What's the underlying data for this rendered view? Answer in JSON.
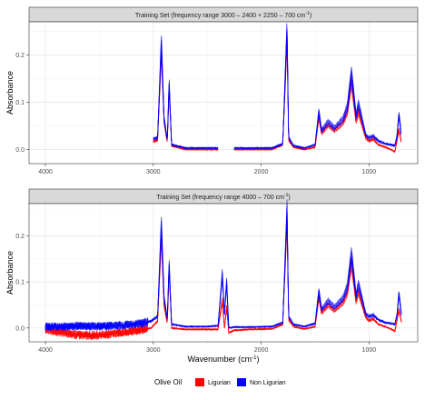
{
  "xlabel": "Wavenumber (cm",
  "xlabel_sup": "-1",
  "xlabel_end": ")",
  "legend": {
    "title": "Olive Oil",
    "items": [
      {
        "label": "Ligurian",
        "color": "#ff0000"
      },
      {
        "label": "Non Ligurian",
        "color": "#0000ff"
      }
    ]
  },
  "chart_data": [
    {
      "type": "line",
      "title": "Training Set (frequency range 3000 – 2400 + 2250 – 700 cm",
      "title_sup": "-1",
      "title_end": ")",
      "ylabel": "Absorbance",
      "xlim": [
        4000,
        700
      ],
      "xticks": [
        4000,
        3000,
        2000,
        1000
      ],
      "ylim": [
        -0.03,
        0.27
      ],
      "yticks": [
        0.0,
        0.1,
        0.2
      ],
      "ytick_labels": [
        "0.0",
        "0.1",
        "0.2"
      ],
      "grid": true,
      "segments": [
        [
          3000,
          2400
        ],
        [
          2250,
          700
        ]
      ],
      "series": [
        {
          "name": "Ligurian",
          "color": "#ff0000",
          "x": [
            3020,
            2960,
            2925,
            2900,
            2870,
            2853,
            2830,
            2700,
            2400,
            2250,
            1900,
            1800,
            1760,
            1745,
            1700,
            1600,
            1500,
            1465,
            1440,
            1378,
            1320,
            1238,
            1200,
            1163,
            1120,
            1098,
            1030,
            1000,
            960,
            914,
            850,
            800,
            760,
            740,
            723,
            700
          ],
          "y": [
            0.015,
            0.02,
            0.215,
            0.06,
            0.015,
            0.135,
            0.008,
            0.0,
            0.0,
            0.0,
            0.0,
            0.01,
            0.24,
            0.02,
            0.005,
            0.0,
            0.005,
            0.07,
            0.035,
            0.052,
            0.04,
            0.058,
            0.08,
            0.145,
            0.06,
            0.08,
            0.025,
            0.018,
            0.022,
            0.01,
            0.005,
            0.0,
            -0.005,
            0.02,
            0.042,
            0.015
          ]
        },
        {
          "name": "Non Ligurian",
          "color": "#0000ff",
          "x": [
            3020,
            2960,
            2925,
            2900,
            2870,
            2853,
            2830,
            2700,
            2400,
            2250,
            1900,
            1800,
            1760,
            1745,
            1700,
            1600,
            1500,
            1465,
            1440,
            1378,
            1320,
            1238,
            1200,
            1163,
            1120,
            1098,
            1030,
            1000,
            960,
            914,
            850,
            800,
            760,
            740,
            723,
            700
          ],
          "y": [
            0.02,
            0.025,
            0.225,
            0.065,
            0.02,
            0.14,
            0.01,
            0.003,
            0.003,
            0.003,
            0.003,
            0.012,
            0.255,
            0.025,
            0.008,
            0.003,
            0.01,
            0.08,
            0.04,
            0.058,
            0.045,
            0.065,
            0.09,
            0.16,
            0.07,
            0.095,
            0.03,
            0.025,
            0.028,
            0.018,
            0.012,
            0.01,
            0.008,
            0.03,
            0.075,
            0.03
          ]
        }
      ]
    },
    {
      "type": "line",
      "title": "Training Set (frequency range 4000 – 700 cm",
      "title_sup": "-1",
      "title_end": ")",
      "ylabel": "Absorbance",
      "xlim": [
        4000,
        700
      ],
      "xticks": [
        4000,
        3000,
        2000,
        1000
      ],
      "ylim": [
        -0.03,
        0.27
      ],
      "yticks": [
        0.0,
        0.1,
        0.2
      ],
      "ytick_labels": [
        "0.0",
        "0.1",
        "0.2"
      ],
      "grid": true,
      "segments": [
        [
          4000,
          700
        ]
      ],
      "series": [
        {
          "name": "Ligurian",
          "color": "#ff0000",
          "x": [
            4000,
            3900,
            3800,
            3700,
            3600,
            3500,
            3400,
            3300,
            3200,
            3100,
            3020,
            2960,
            2925,
            2900,
            2870,
            2853,
            2830,
            2700,
            2500,
            2400,
            2360,
            2340,
            2320,
            2300,
            2250,
            2100,
            1900,
            1800,
            1760,
            1745,
            1700,
            1600,
            1500,
            1465,
            1440,
            1378,
            1320,
            1238,
            1200,
            1163,
            1120,
            1098,
            1030,
            1000,
            960,
            914,
            850,
            800,
            760,
            740,
            723,
            700
          ],
          "y": [
            -0.003,
            -0.008,
            -0.012,
            -0.015,
            -0.016,
            -0.015,
            -0.013,
            -0.01,
            -0.007,
            -0.004,
            0.0,
            0.015,
            0.205,
            0.05,
            0.01,
            0.13,
            0.0,
            -0.003,
            -0.003,
            -0.003,
            0.06,
            0.0,
            0.045,
            -0.01,
            -0.005,
            -0.003,
            -0.002,
            0.008,
            0.24,
            0.018,
            0.003,
            -0.002,
            0.003,
            0.068,
            0.033,
            0.05,
            0.038,
            0.056,
            0.078,
            0.142,
            0.058,
            0.078,
            0.023,
            0.016,
            0.02,
            0.008,
            0.003,
            -0.002,
            -0.007,
            0.018,
            0.04,
            0.013
          ]
        },
        {
          "name": "Non Ligurian",
          "color": "#0000ff",
          "x": [
            4000,
            3900,
            3800,
            3700,
            3600,
            3500,
            3400,
            3300,
            3200,
            3100,
            3020,
            2960,
            2925,
            2900,
            2870,
            2853,
            2830,
            2700,
            2500,
            2400,
            2360,
            2340,
            2320,
            2300,
            2250,
            2100,
            1900,
            1800,
            1760,
            1745,
            1700,
            1600,
            1500,
            1465,
            1440,
            1378,
            1320,
            1238,
            1200,
            1163,
            1120,
            1098,
            1030,
            1000,
            960,
            914,
            850,
            800,
            760,
            740,
            723,
            700
          ],
          "y": [
            0.003,
            0.003,
            0.003,
            0.004,
            0.004,
            0.004,
            0.005,
            0.006,
            0.007,
            0.01,
            0.015,
            0.025,
            0.225,
            0.065,
            0.02,
            0.14,
            0.008,
            0.003,
            0.003,
            0.005,
            0.115,
            0.03,
            0.1,
            0.0,
            0.002,
            0.002,
            0.003,
            0.012,
            0.255,
            0.025,
            0.008,
            0.003,
            0.01,
            0.08,
            0.04,
            0.058,
            0.045,
            0.065,
            0.09,
            0.16,
            0.07,
            0.095,
            0.03,
            0.025,
            0.028,
            0.018,
            0.012,
            0.01,
            0.008,
            0.03,
            0.075,
            0.03
          ]
        }
      ]
    }
  ]
}
